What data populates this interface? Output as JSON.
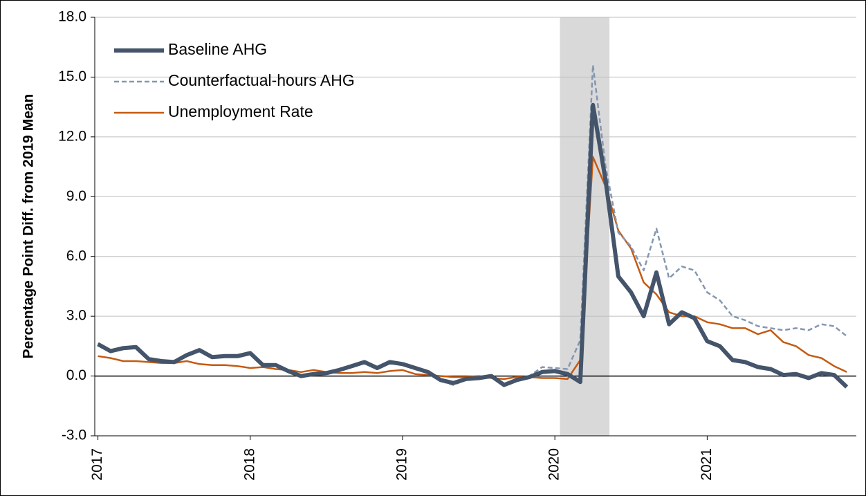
{
  "chart_data": {
    "type": "line",
    "y_label": "Percentage Point Diff. from 2019 Mean",
    "categories": [
      "2017",
      null,
      null,
      null,
      null,
      null,
      null,
      null,
      null,
      null,
      null,
      null,
      "2018",
      null,
      null,
      null,
      null,
      null,
      null,
      null,
      null,
      null,
      null,
      null,
      "2019",
      null,
      null,
      null,
      null,
      null,
      null,
      null,
      null,
      null,
      null,
      null,
      "2020",
      null,
      null,
      null,
      null,
      null,
      null,
      null,
      null,
      null,
      null,
      null,
      "2021",
      null,
      null,
      null,
      null,
      null,
      null,
      null,
      null,
      null,
      null,
      null
    ],
    "series": [
      {
        "name": "Baseline AHG",
        "color": "#44546a",
        "style": "solid",
        "width": 6,
        "values": [
          1.6,
          1.25,
          1.4,
          1.45,
          0.85,
          0.75,
          0.7,
          1.05,
          1.3,
          0.95,
          1.0,
          1.0,
          1.15,
          0.55,
          0.55,
          0.25,
          0.0,
          0.1,
          0.15,
          0.3,
          0.5,
          0.7,
          0.4,
          0.7,
          0.6,
          0.4,
          0.2,
          -0.2,
          -0.35,
          -0.15,
          -0.1,
          0.0,
          -0.45,
          -0.2,
          -0.05,
          0.2,
          0.25,
          0.1,
          -0.3,
          13.6,
          9.8,
          5.0,
          4.2,
          3.0,
          5.2,
          2.6,
          3.2,
          2.9,
          1.75,
          1.5,
          0.8,
          0.7,
          0.45,
          0.35,
          0.05,
          0.1,
          -0.1,
          0.15,
          0.05,
          -0.55
        ]
      },
      {
        "name": "Counterfactual-hours AHG",
        "color": "#8497b0",
        "style": "dashed",
        "width": 2.5,
        "values": [
          1.65,
          1.3,
          1.45,
          1.5,
          0.9,
          0.8,
          0.75,
          1.1,
          1.35,
          1.0,
          1.05,
          1.05,
          1.2,
          0.6,
          0.6,
          0.3,
          0.0,
          0.1,
          0.15,
          0.3,
          0.5,
          0.7,
          0.4,
          0.75,
          0.65,
          0.45,
          0.2,
          -0.25,
          -0.45,
          -0.2,
          -0.15,
          0.0,
          -0.4,
          -0.15,
          0.0,
          0.45,
          0.4,
          0.35,
          1.8,
          15.6,
          10.5,
          7.2,
          6.5,
          5.3,
          7.4,
          4.9,
          5.5,
          5.3,
          4.2,
          3.8,
          3.0,
          2.8,
          2.5,
          2.4,
          2.3,
          2.4,
          2.3,
          2.6,
          2.5,
          2.0
        ]
      },
      {
        "name": "Unemployment Rate",
        "color": "#c55a11",
        "style": "solid",
        "width": 2.5,
        "values": [
          1.0,
          0.9,
          0.75,
          0.75,
          0.7,
          0.65,
          0.65,
          0.75,
          0.6,
          0.55,
          0.55,
          0.5,
          0.4,
          0.45,
          0.35,
          0.3,
          0.2,
          0.3,
          0.2,
          0.15,
          0.15,
          0.2,
          0.15,
          0.25,
          0.3,
          0.1,
          0.05,
          0.0,
          -0.05,
          -0.05,
          0.0,
          -0.1,
          -0.15,
          -0.05,
          -0.05,
          -0.1,
          -0.1,
          -0.15,
          0.8,
          11.0,
          9.5,
          7.3,
          6.4,
          4.7,
          4.1,
          3.2,
          3.0,
          3.0,
          2.7,
          2.6,
          2.4,
          2.4,
          2.1,
          2.3,
          1.7,
          1.5,
          1.05,
          0.9,
          0.5,
          0.2
        ]
      }
    ],
    "ylim": [
      -3,
      18
    ],
    "yticks": [
      {
        "value": -3,
        "label": "-3.0"
      },
      {
        "value": 0,
        "label": "0.0"
      },
      {
        "value": 3,
        "label": "3.0"
      },
      {
        "value": 6,
        "label": "6.0"
      },
      {
        "value": 9,
        "label": "9.0"
      },
      {
        "value": 12,
        "label": "12.0"
      },
      {
        "value": 15,
        "label": "15.0"
      },
      {
        "value": 18,
        "label": "18.0"
      }
    ],
    "grid": true,
    "shaded_range": [
      36.4,
      40.3
    ],
    "shade_color": "#d9d9d9",
    "legend": "upper left"
  }
}
